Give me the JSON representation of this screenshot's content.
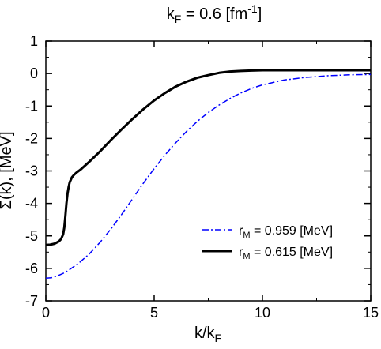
{
  "chart_data": {
    "type": "line",
    "title": {
      "base": "k",
      "sub": "F",
      "mid": " = 0.6 [fm",
      "sup": "-1",
      "end": "]"
    },
    "xlabel": {
      "base": "k/k",
      "sub": "F"
    },
    "ylabel": "Σ(k), [MeV]",
    "xlim": [
      0,
      15
    ],
    "ylim": [
      -7,
      1
    ],
    "xticks": [
      0,
      5,
      10,
      15
    ],
    "yticks": [
      1,
      0,
      -1,
      -2,
      -3,
      -4,
      -5,
      -6,
      -7
    ],
    "grid": false,
    "legend_position": "lower-right",
    "series": [
      {
        "name": {
          "base": "r",
          "sub": "M",
          "rest": " = 0.959 [MeV]"
        },
        "color": "#0000ff",
        "style": "dash-dot",
        "x": [
          0.0,
          0.25,
          0.5,
          0.75,
          1.0,
          1.5,
          2.0,
          2.5,
          3.0,
          3.5,
          4.0,
          4.5,
          5.0,
          5.5,
          6.0,
          6.5,
          7.0,
          7.5,
          8.0,
          8.5,
          9.0,
          9.5,
          10.0,
          11.0,
          12.0,
          13.0,
          14.0,
          15.0
        ],
        "y": [
          -6.3,
          -6.29,
          -6.24,
          -6.17,
          -6.08,
          -5.85,
          -5.56,
          -5.2,
          -4.79,
          -4.34,
          -3.86,
          -3.38,
          -2.93,
          -2.51,
          -2.13,
          -1.78,
          -1.47,
          -1.2,
          -0.97,
          -0.77,
          -0.6,
          -0.46,
          -0.35,
          -0.2,
          -0.12,
          -0.07,
          -0.04,
          -0.03
        ]
      },
      {
        "name": {
          "base": "r",
          "sub": "M",
          "rest": " = 0.615 [MeV]"
        },
        "color": "#000000",
        "style": "solid",
        "x": [
          0.0,
          0.2,
          0.4,
          0.6,
          0.7,
          0.8,
          0.85,
          0.9,
          0.95,
          1.0,
          1.05,
          1.1,
          1.2,
          1.3,
          1.4,
          1.6,
          2.0,
          2.5,
          3.0,
          3.5,
          4.0,
          4.5,
          5.0,
          5.5,
          6.0,
          6.5,
          7.0,
          7.5,
          8.0,
          8.5,
          9.0,
          9.5,
          10.0,
          11.0,
          12.0,
          13.0,
          14.0,
          15.0
        ],
        "y": [
          -5.28,
          -5.27,
          -5.24,
          -5.17,
          -5.1,
          -4.95,
          -4.75,
          -4.4,
          -4.0,
          -3.7,
          -3.5,
          -3.35,
          -3.2,
          -3.12,
          -3.06,
          -2.96,
          -2.72,
          -2.4,
          -2.05,
          -1.72,
          -1.4,
          -1.1,
          -0.83,
          -0.6,
          -0.4,
          -0.25,
          -0.13,
          -0.05,
          0.02,
          0.06,
          0.08,
          0.09,
          0.1,
          0.1,
          0.1,
          0.1,
          0.1,
          0.1
        ]
      }
    ]
  }
}
